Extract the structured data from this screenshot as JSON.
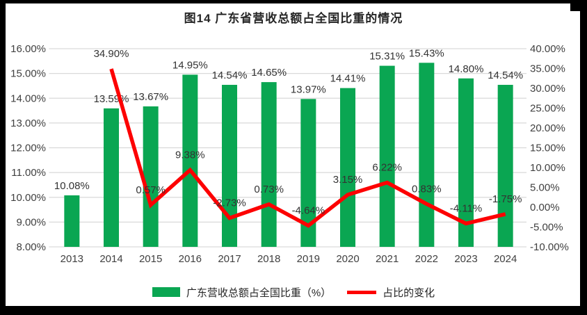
{
  "title": "图14  广东省营收总额占全国比重的情况",
  "colors": {
    "bar": "#0aa652",
    "line": "#fd0002",
    "grid": "#d9d9d9",
    "axis_text": "#404040",
    "label_text": "#333333",
    "frame": "#000000"
  },
  "chart_data": {
    "type": "bar+line combo",
    "title": "图14  广东省营收总额占全国比重的情况",
    "categories": [
      "2013",
      "2014",
      "2015",
      "2016",
      "2017",
      "2018",
      "2019",
      "2020",
      "2021",
      "2022",
      "2023",
      "2024"
    ],
    "series": [
      {
        "name": "广东营收总额占全国比重（%）",
        "type": "bar",
        "axis": "left",
        "values": [
          10.08,
          13.59,
          13.67,
          14.95,
          14.54,
          14.65,
          13.97,
          14.41,
          15.31,
          15.43,
          14.8,
          14.54
        ],
        "labels": [
          "10.08%",
          "13.59%",
          "13.67%",
          "14.95%",
          "14.54%",
          "14.65%",
          "13.97%",
          "14.41%",
          "15.31%",
          "15.43%",
          "14.80%",
          "14.54%"
        ]
      },
      {
        "name": "占比的变化",
        "type": "line",
        "axis": "right",
        "values": [
          null,
          34.9,
          0.57,
          9.38,
          -2.73,
          0.73,
          -4.64,
          3.15,
          6.22,
          0.83,
          -4.11,
          -1.75
        ],
        "labels": [
          null,
          "34.90%",
          "0.57%",
          "9.38%",
          "-2.73%",
          "0.73%",
          "-4.64%",
          "3.15%",
          "6.22%",
          "0.83%",
          "-4.11%",
          "-1.75%"
        ]
      }
    ],
    "left_axis": {
      "min": 8,
      "max": 16,
      "ticks": [
        "16.00%",
        "15.00%",
        "14.00%",
        "13.00%",
        "12.00%",
        "11.00%",
        "10.00%",
        "9.00%",
        "8.00%"
      ]
    },
    "right_axis": {
      "min": -10,
      "max": 40,
      "ticks": [
        "40.00%",
        "35.00%",
        "30.00%",
        "25.00%",
        "20.00%",
        "15.00%",
        "10.00%",
        "5.00%",
        "0.00%",
        "-5.00%",
        "-10.00%"
      ]
    },
    "grid": true,
    "legend_position": "bottom"
  }
}
